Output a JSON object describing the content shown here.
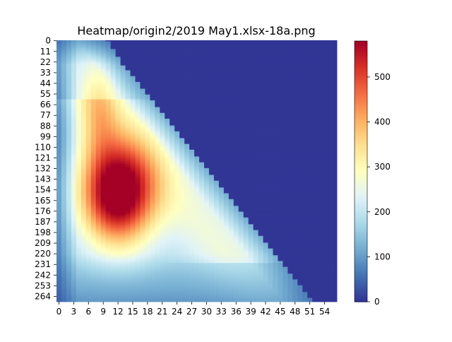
{
  "chart_data": {
    "type": "heatmap",
    "title": "Heatmap/origin2/2019 May1.xlsx-18a.png",
    "xlabel": "",
    "ylabel": "",
    "n_cols": 57,
    "n_rows": 270,
    "x_tick_labels": [
      "0",
      "3",
      "6",
      "9",
      "12",
      "15",
      "18",
      "21",
      "24",
      "27",
      "30",
      "33",
      "36",
      "39",
      "42",
      "45",
      "48",
      "51",
      "54"
    ],
    "y_tick_labels": [
      "0",
      "11",
      "22",
      "33",
      "44",
      "55",
      "66",
      "77",
      "88",
      "99",
      "110",
      "121",
      "132",
      "143",
      "154",
      "165",
      "176",
      "187",
      "198",
      "209",
      "220",
      "231",
      "242",
      "253",
      "264"
    ],
    "colorbar": {
      "colormap": "RdYlBu_r",
      "vmin": 0,
      "vmax": 580,
      "tick_labels": [
        "0",
        "100",
        "200",
        "300",
        "400",
        "500"
      ]
    },
    "value_range": [
      0,
      580
    ],
    "description_of_pattern": "lower-left triangular region with values; upper-right region filled at minimum",
    "peak_value": 570,
    "peak_location": {
      "x": 12,
      "y": 160
    }
  },
  "colors": {
    "background": "#ffffff",
    "axis": "#000000"
  }
}
